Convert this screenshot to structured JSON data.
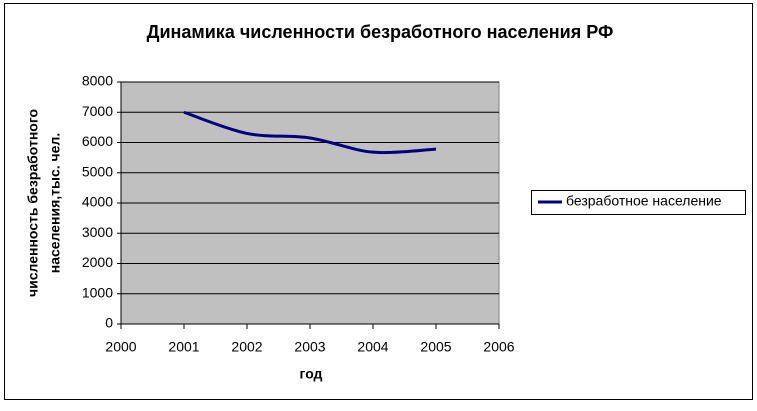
{
  "chart_data": {
    "type": "line",
    "title": "Динамика численности безработного населения РФ",
    "xlabel": "год",
    "ylabel": [
      "численность безработного",
      "населения,тыс. чел."
    ],
    "x": [
      2001,
      2002,
      2003,
      2004,
      2005
    ],
    "series": [
      {
        "name": "безработное население",
        "color": "#000080",
        "values": [
          7000,
          6300,
          6150,
          5680,
          5780
        ]
      }
    ],
    "xlim": [
      2000,
      2006
    ],
    "xticks": [
      2000,
      2001,
      2002,
      2003,
      2004,
      2005,
      2006
    ],
    "ylim": [
      0,
      8000
    ],
    "yticks": [
      0,
      1000,
      2000,
      3000,
      4000,
      5000,
      6000,
      7000,
      8000
    ],
    "grid": true,
    "smooth": true,
    "legend": "right",
    "plot_background": "#c0c0c0"
  }
}
